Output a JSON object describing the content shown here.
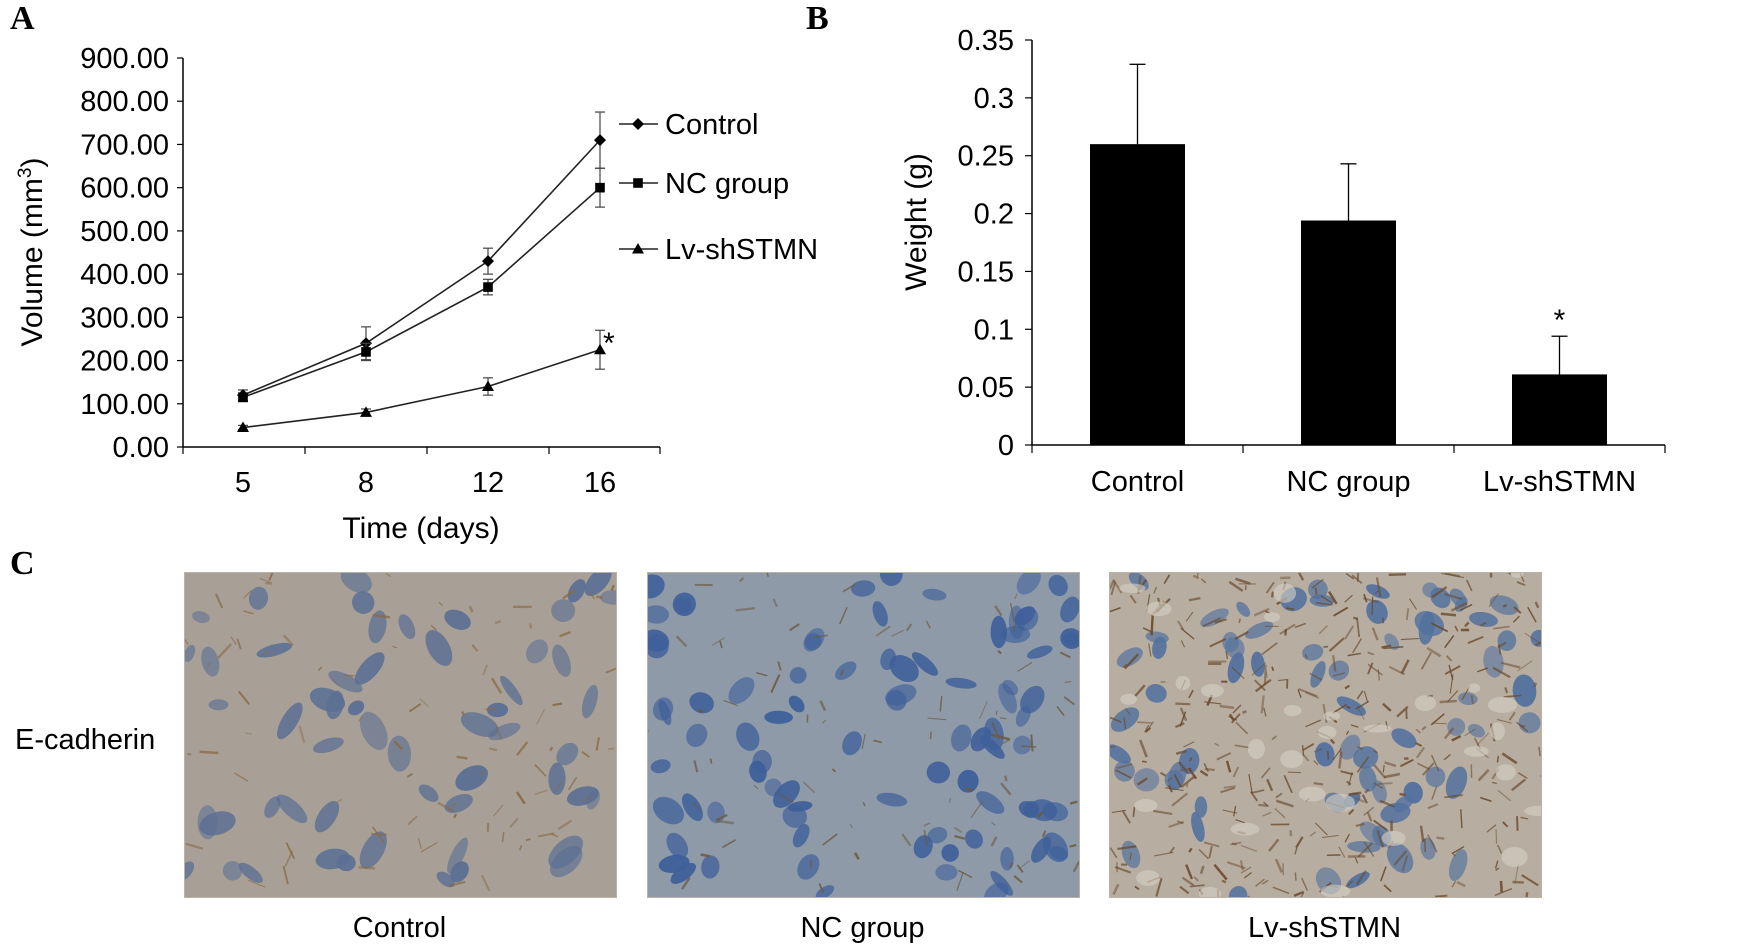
{
  "panels": {
    "a": "A",
    "b": "B",
    "c": "C"
  },
  "chart_data": [
    {
      "type": "line",
      "panel": "A",
      "xlabel": "Time (days)",
      "ylabel_main": "Volume (mm",
      "ylabel_sup": "3",
      "ylabel_close": ")",
      "x": [
        5,
        8,
        12,
        16
      ],
      "ylim": [
        0,
        900
      ],
      "yticks": [
        "0.00",
        "100.00",
        "200.00",
        "300.00",
        "400.00",
        "500.00",
        "600.00",
        "700.00",
        "800.00",
        "900.00"
      ],
      "grid": false,
      "legend": "right",
      "series": [
        {
          "name": "Control",
          "marker": "diamond",
          "values": [
            120,
            240,
            430,
            710
          ],
          "errors": [
            12,
            38,
            30,
            65
          ]
        },
        {
          "name": "NC group",
          "marker": "square",
          "values": [
            115,
            220,
            370,
            600
          ],
          "errors": [
            10,
            20,
            18,
            45
          ]
        },
        {
          "name": "Lv-shSTMN",
          "marker": "triangle",
          "values": [
            45,
            80,
            140,
            225
          ],
          "errors": [
            5,
            8,
            20,
            45
          ]
        }
      ],
      "annotation": "*"
    },
    {
      "type": "bar",
      "panel": "B",
      "ylabel": "Weight (g)",
      "categories": [
        "Control",
        "NC group",
        "Lv-shSTMN"
      ],
      "values": [
        0.26,
        0.194,
        0.061
      ],
      "errors": [
        0.069,
        0.049,
        0.033
      ],
      "ylim": [
        0,
        0.35
      ],
      "yticks": [
        "0",
        "0.05",
        "0.1",
        "0.15",
        "0.2",
        "0.25",
        "0.3",
        "0.35"
      ],
      "grid": false,
      "annotation": "*"
    }
  ],
  "panel_c": {
    "row_label": "E-cadherin",
    "images": [
      {
        "caption": "Control",
        "stain": "weak",
        "colors": {
          "bg": "#a8a096",
          "nucleus": "#5b6f94",
          "brown": "#8a6a46"
        }
      },
      {
        "caption": "NC group",
        "stain": "weak",
        "colors": {
          "bg": "#8e9aa8",
          "nucleus": "#3e5f9a",
          "brown": "#6d5a3e"
        }
      },
      {
        "caption": "Lv-shSTMN",
        "stain": "strong",
        "colors": {
          "bg": "#b7ada0",
          "nucleus": "#52719e",
          "brown": "#6b4a2c"
        }
      }
    ]
  }
}
